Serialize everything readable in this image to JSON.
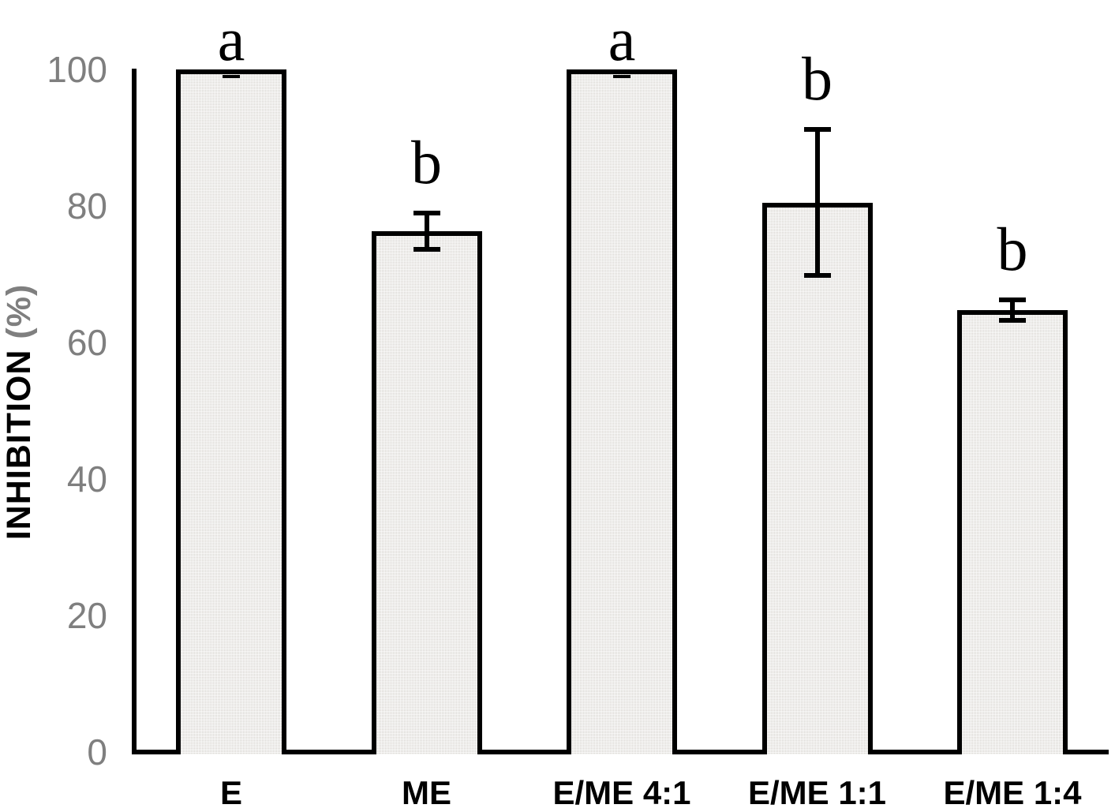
{
  "chart_data": {
    "type": "bar",
    "title": "",
    "xlabel": "",
    "ylabel": "INHIBITION (%)",
    "ylabel_main": "INHIBITION",
    "ylabel_unit": "(%)",
    "categories": [
      "E",
      "ME",
      "E/ME 4:1",
      "E/ME 1:1",
      "E/ME 1:4"
    ],
    "values": [
      100,
      76.3,
      100,
      80.5,
      64.7
    ],
    "error_bars": [
      0.5,
      2.7,
      0.5,
      10.7,
      1.5
    ],
    "sig_letters": [
      "a",
      "b",
      "a",
      "b",
      "b"
    ],
    "yticks": [
      0,
      20,
      40,
      60,
      80,
      100
    ],
    "ylim": [
      0,
      100
    ],
    "grid": false,
    "legend": null,
    "colors": {
      "bar_fill": "#d8d5d0",
      "bar_pattern_line": "#c6c2bd",
      "bar_border": "#000000",
      "axis": "#000000",
      "tick_label": "#7f7f7f",
      "sig_letter": "#000000"
    }
  }
}
